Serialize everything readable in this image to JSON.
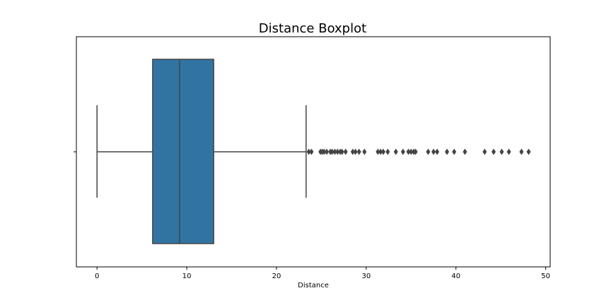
{
  "chart_data": {
    "type": "boxplot",
    "orientation": "horizontal",
    "title": "Distance Boxplot",
    "xlabel": "Distance",
    "xlim": [
      -2.3,
      50.5
    ],
    "xticks": [
      0,
      10,
      20,
      30,
      40,
      50
    ],
    "xtick_labels": [
      "0",
      "10",
      "20",
      "30",
      "40",
      "50"
    ],
    "box": {
      "whisker_low": 0,
      "q1": 6.2,
      "median": 9.2,
      "q3": 13.0,
      "whisker_high": 23.3
    },
    "outliers": [
      23.6,
      23.9,
      24.9,
      25.1,
      25.3,
      25.6,
      26.0,
      26.2,
      26.5,
      26.8,
      27.1,
      27.3,
      27.7,
      28.5,
      28.8,
      29.2,
      29.8,
      31.3,
      31.6,
      31.9,
      32.4,
      33.3,
      34.1,
      34.7,
      35.0,
      35.3,
      35.5,
      36.9,
      37.5,
      37.9,
      39.0,
      39.8,
      41.0,
      43.2,
      44.2,
      45.1,
      45.9,
      47.3,
      48.1
    ],
    "box_color": "#3274a1",
    "line_color": "#444444",
    "grid": false,
    "legend": false
  }
}
